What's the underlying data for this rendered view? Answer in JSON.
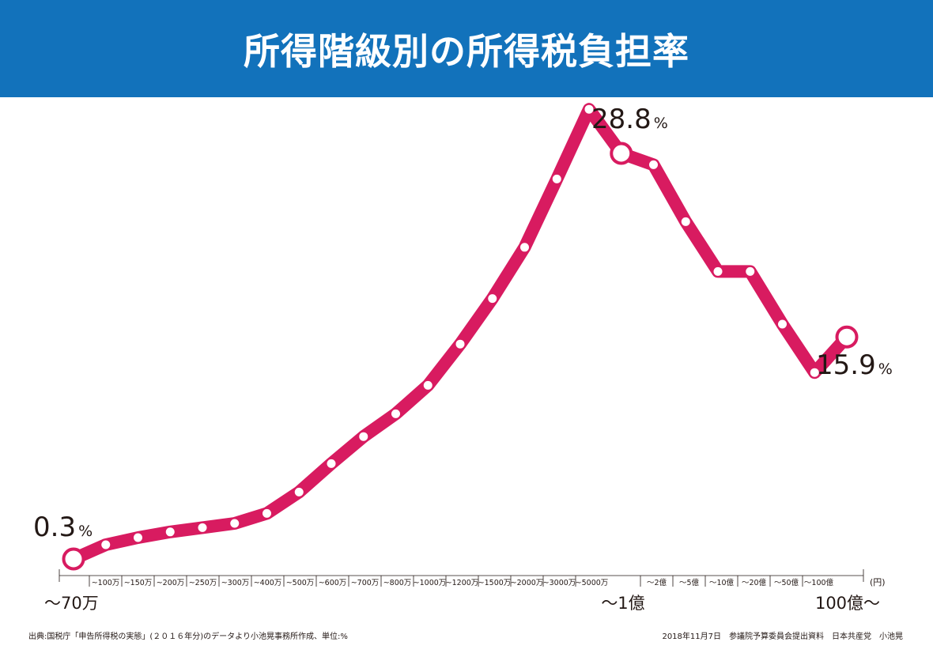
{
  "title": "所得階級別の所得税負担率",
  "footer": {
    "source": "出典:国税庁「申告所得税の実態」(２０１６年分)のデータより小池晃事務所作成、単位:%",
    "credit": "2018年11月7日　参議院予算委員会提出資料　日本共産党　小池晃"
  },
  "colors": {
    "header": "#1272bb",
    "line": "#d81b60",
    "marker": "#ffffff"
  },
  "chart_data": {
    "type": "line",
    "title": "所得階級別の所得税負担率",
    "unit_label": "(円)",
    "value_suffix": "%",
    "grid": false,
    "categories": [
      "～70万",
      "~100万",
      "~150万",
      "~200万",
      "~250万",
      "~300万",
      "~400万",
      "~500万",
      "~600万",
      "~700万",
      "~800万",
      "~1000万",
      "~1200万",
      "~1500万",
      "~2000万",
      "~3000万",
      "~5000万",
      "～1億",
      "～2億",
      "～5億",
      "～10億",
      "～20億",
      "～50億",
      "～100億",
      "100億～"
    ],
    "tick_labels": [
      "~100万",
      "~150万",
      "~200万",
      "~250万",
      "~300万",
      "~400万",
      "~500万",
      "~600万",
      "~700万",
      "~800万",
      "~1000万",
      "~1200万",
      "~1500万",
      "~2000万",
      "~3000万",
      "~5000万",
      "",
      "～2億",
      "～5億",
      "～10億",
      "～20億",
      "～50億",
      "～100億"
    ],
    "edge_labels": {
      "first": "～70万",
      "middle": "～1億",
      "last": "100億～"
    },
    "values": [
      0.3,
      1.3,
      1.8,
      2.2,
      2.5,
      2.8,
      3.5,
      5.0,
      7.0,
      8.9,
      10.5,
      12.5,
      15.4,
      18.6,
      22.2,
      27.0,
      31.9,
      28.8,
      28.0,
      24.0,
      20.5,
      20.5,
      16.8,
      13.4,
      15.9
    ],
    "highlights": [
      {
        "index": 0,
        "label": "0.3"
      },
      {
        "index": 17,
        "label": "28.8"
      },
      {
        "index": 24,
        "label": "15.9"
      }
    ]
  }
}
